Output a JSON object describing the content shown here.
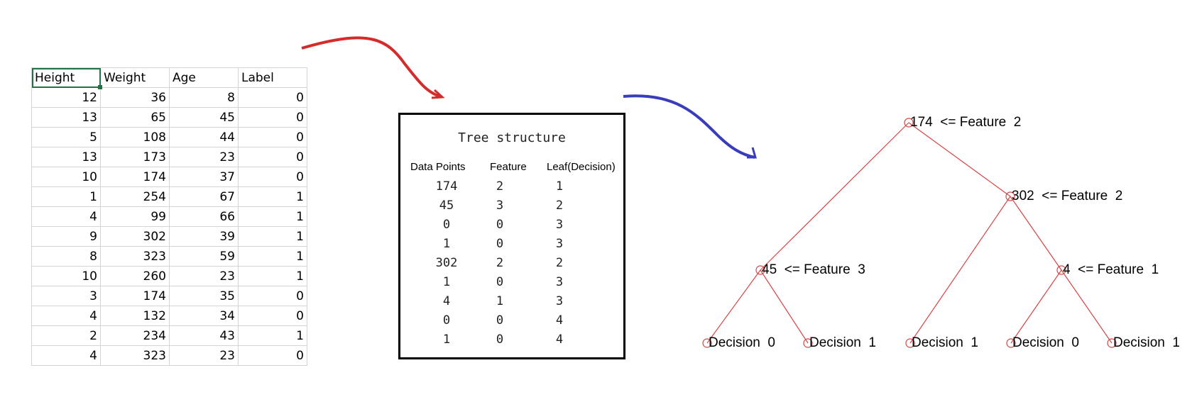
{
  "spreadsheet": {
    "headers": [
      "Height",
      "Weight",
      "Age",
      "Label"
    ],
    "rows": [
      [
        "12",
        "36",
        "8",
        "0"
      ],
      [
        "13",
        "65",
        "45",
        "0"
      ],
      [
        "5",
        "108",
        "44",
        "0"
      ],
      [
        "13",
        "173",
        "23",
        "0"
      ],
      [
        "10",
        "174",
        "37",
        "0"
      ],
      [
        "1",
        "254",
        "67",
        "1"
      ],
      [
        "4",
        "99",
        "66",
        "1"
      ],
      [
        "9",
        "302",
        "39",
        "1"
      ],
      [
        "8",
        "323",
        "59",
        "1"
      ],
      [
        "10",
        "260",
        "23",
        "1"
      ],
      [
        "3",
        "174",
        "35",
        "0"
      ],
      [
        "4",
        "132",
        "34",
        "0"
      ],
      [
        "2",
        "234",
        "43",
        "1"
      ],
      [
        "4",
        "323",
        "23",
        "0"
      ]
    ]
  },
  "arrows": {
    "first_color": "#d42b2b",
    "second_color": "#3a3dbb"
  },
  "tree_structure": {
    "title": "Tree structure",
    "headers": {
      "data_points": "Data Points",
      "feature": "Feature",
      "leaf": "Leaf(Decision)"
    },
    "data_points": [
      "174",
      "45",
      "0",
      "1",
      "302",
      "1",
      "4",
      "0",
      "1"
    ],
    "features": [
      "2",
      "3",
      "0",
      "0",
      "2",
      "0",
      "1",
      "0",
      "0"
    ],
    "leaves": [
      "1",
      "2",
      "3",
      "3",
      "2",
      "3",
      "3",
      "4",
      "4"
    ]
  },
  "decision_tree": {
    "color": "#d64545",
    "nodes": {
      "root": "174  <= Feature  2",
      "right": "302  <= Feature  2",
      "left": "45  <= Feature  3",
      "right_right": "4  <= Feature  1",
      "leaf_1": "Decision  0",
      "leaf_2": "Decision  1",
      "leaf_3": "Decision  1",
      "leaf_4": "Decision  0",
      "leaf_5": "Decision  1"
    }
  }
}
